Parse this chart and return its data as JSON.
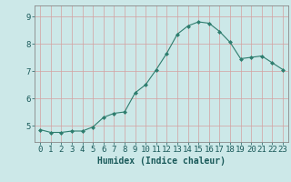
{
  "x": [
    0,
    1,
    2,
    3,
    4,
    5,
    6,
    7,
    8,
    9,
    10,
    11,
    12,
    13,
    14,
    15,
    16,
    17,
    18,
    19,
    20,
    21,
    22,
    23
  ],
  "y": [
    4.85,
    4.75,
    4.75,
    4.8,
    4.8,
    4.95,
    5.3,
    5.45,
    5.5,
    6.2,
    6.5,
    7.05,
    7.65,
    8.35,
    8.65,
    8.8,
    8.75,
    8.45,
    8.05,
    7.45,
    7.5,
    7.55,
    7.3,
    7.05
  ],
  "line_color": "#2e7d6e",
  "marker": "D",
  "marker_size": 2,
  "bg_color": "#cce8e8",
  "grid_color": "#d4a0a0",
  "axis_color": "#888888",
  "xlabel": "Humidex (Indice chaleur)",
  "xlabel_fontsize": 7,
  "tick_fontsize": 6.5,
  "ytick_labels": [
    "5",
    "6",
    "7",
    "8",
    "9"
  ],
  "ytick_values": [
    5,
    6,
    7,
    8,
    9
  ],
  "ylim": [
    4.4,
    9.4
  ],
  "xlim": [
    -0.5,
    23.5
  ],
  "figsize": [
    3.2,
    2.0
  ],
  "dpi": 100
}
